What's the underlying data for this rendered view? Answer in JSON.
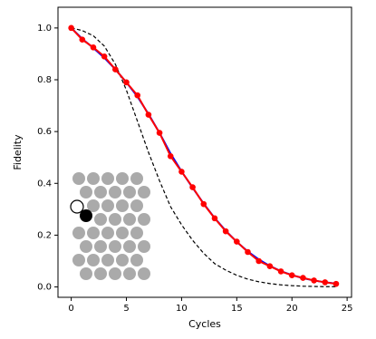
{
  "chart_data": {
    "type": "line",
    "xlabel": "Cycles",
    "ylabel": "Fidelity",
    "x": [
      0,
      1,
      2,
      3,
      4,
      5,
      6,
      7,
      8,
      9,
      10,
      11,
      12,
      13,
      14,
      15,
      16,
      17,
      18,
      19,
      20,
      21,
      22,
      23,
      24
    ],
    "series": [
      {
        "color": "#000000",
        "dash": true,
        "markers": false,
        "values": [
          1.0,
          0.99,
          0.97,
          0.93,
          0.86,
          0.76,
          0.64,
          0.52,
          0.41,
          0.31,
          0.24,
          0.18,
          0.13,
          0.09,
          0.065,
          0.045,
          0.03,
          0.02,
          0.013,
          0.008,
          0.005,
          0.003,
          0.002,
          0.001,
          0.001
        ]
      },
      {
        "color": "#0000ff",
        "dash": false,
        "markers": false,
        "values": [
          1.0,
          0.958,
          0.923,
          0.885,
          0.84,
          0.79,
          0.735,
          0.668,
          0.595,
          0.515,
          0.446,
          0.383,
          0.322,
          0.266,
          0.217,
          0.174,
          0.137,
          0.106,
          0.081,
          0.061,
          0.046,
          0.034,
          0.025,
          0.018,
          0.013
        ]
      },
      {
        "color": "#ff0000",
        "dash": false,
        "markers": true,
        "values": [
          1.0,
          0.955,
          0.925,
          0.89,
          0.84,
          0.79,
          0.74,
          0.665,
          0.595,
          0.505,
          0.445,
          0.385,
          0.32,
          0.265,
          0.215,
          0.175,
          0.135,
          0.1,
          0.08,
          0.06,
          0.045,
          0.035,
          0.025,
          0.018,
          0.012
        ]
      }
    ],
    "xlim": [
      -1.2,
      25.4
    ],
    "ylim": [
      -0.04,
      1.08
    ],
    "xticks": [
      0,
      5,
      10,
      15,
      20,
      25
    ],
    "yticks": [
      {
        "value": 0,
        "label": "0.0"
      },
      0.2,
      0.4,
      0.6,
      0.8,
      {
        "value": 1,
        "label": "1.0"
      }
    ]
  }
}
